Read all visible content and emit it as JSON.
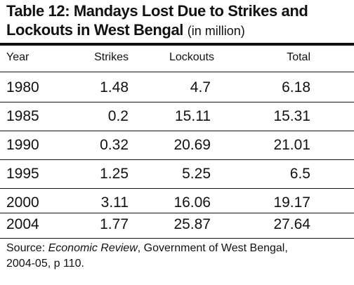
{
  "title": {
    "line1": "Table 12: Mandays Lost Due to Strikes and",
    "line2": "Lockouts in West Bengal",
    "unit": "(in million)"
  },
  "table": {
    "columns": [
      "Year",
      "Strikes",
      "Lockouts",
      "Total"
    ],
    "rows": [
      {
        "year": "1980",
        "strikes": "1.48",
        "lockouts": "4.7",
        "total": "6.18"
      },
      {
        "year": "1985",
        "strikes": "0.2",
        "lockouts": "15.11",
        "total": "15.31"
      },
      {
        "year": "1990",
        "strikes": "0.32",
        "lockouts": "20.69",
        "total": "21.01"
      },
      {
        "year": "1995",
        "strikes": "1.25",
        "lockouts": "5.25",
        "total": "6.5"
      },
      {
        "year": "2000",
        "strikes": "3.11",
        "lockouts": "16.06",
        "total": "19.17"
      },
      {
        "year": "2004",
        "strikes": "1.77",
        "lockouts": "25.87",
        "total": "27.64"
      }
    ]
  },
  "source": {
    "prefix": "Source:",
    "publication": "Economic Review",
    "rest": ", Government of West Bengal,",
    "line2": "2004-05, p 110."
  }
}
